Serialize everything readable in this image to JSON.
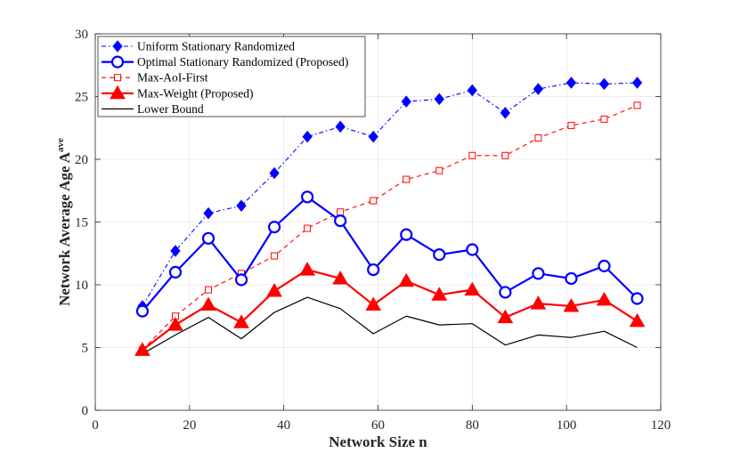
{
  "chart_data": {
    "type": "line",
    "title": "",
    "xlabel": "Network Size n",
    "ylabel": "Network Average Age A",
    "ylabel_superscript": "ave",
    "xlim": [
      0,
      120
    ],
    "ylim": [
      0,
      30
    ],
    "xticks": [
      0,
      20,
      40,
      60,
      80,
      100,
      120
    ],
    "yticks": [
      0,
      5,
      10,
      15,
      20,
      25,
      30
    ],
    "grid": true,
    "legend_position": "top-left",
    "x": [
      10,
      17,
      24,
      31,
      38,
      45,
      52,
      59,
      66,
      73,
      80,
      87,
      94,
      101,
      108,
      115
    ],
    "series": [
      {
        "name": "Uniform Stationary Randomized",
        "color": "#0000ff",
        "line_style": "dashdot",
        "marker": "diamond",
        "values": [
          8.3,
          12.7,
          15.7,
          16.3,
          18.9,
          21.8,
          22.6,
          21.8,
          24.6,
          24.8,
          25.5,
          23.7,
          25.6,
          26.1,
          26.0,
          26.1
        ]
      },
      {
        "name": "Optimal Stationary Randomized (Proposed)",
        "color": "#0000ff",
        "line_style": "solid",
        "marker": "circle",
        "values": [
          7.9,
          11.0,
          13.7,
          10.4,
          14.6,
          17.0,
          15.1,
          11.2,
          14.0,
          12.4,
          12.8,
          9.4,
          10.9,
          10.5,
          11.5,
          8.9
        ]
      },
      {
        "name": "Max-AoI-First",
        "color": "#ff0000",
        "line_style": "dashed",
        "marker": "square",
        "values": [
          4.8,
          7.5,
          9.6,
          10.9,
          12.3,
          14.5,
          15.8,
          16.7,
          18.4,
          19.1,
          20.3,
          20.3,
          21.7,
          22.7,
          23.2,
          24.3
        ]
      },
      {
        "name": "Max-Weight (Proposed)",
        "color": "#ff0000",
        "line_style": "solid",
        "marker": "triangle",
        "values": [
          4.8,
          6.8,
          8.4,
          7.0,
          9.5,
          11.2,
          10.5,
          8.4,
          10.3,
          9.2,
          9.6,
          7.4,
          8.5,
          8.3,
          8.8,
          7.1
        ]
      },
      {
        "name": "Lower Bound",
        "color": "#000000",
        "line_style": "solid",
        "marker": "none",
        "values": [
          4.5,
          6.0,
          7.4,
          5.7,
          7.8,
          9.0,
          8.1,
          6.1,
          7.5,
          6.8,
          6.9,
          5.2,
          6.0,
          5.8,
          6.3,
          5.0
        ]
      }
    ]
  }
}
